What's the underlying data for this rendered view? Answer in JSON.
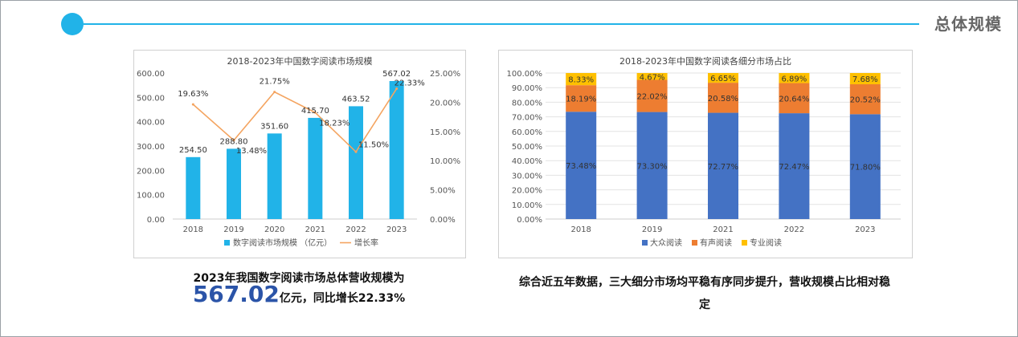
{
  "header": {
    "title": "总体规模",
    "accent": "#21b3e8"
  },
  "chart_data": [
    {
      "type": "bar",
      "title": "2018-2023年中国数字阅读市场规模",
      "categories": [
        "2018",
        "2019",
        "2020",
        "2021",
        "2022",
        "2023"
      ],
      "series": [
        {
          "name": "数字阅读市场规模 （亿元）",
          "type": "bar",
          "axis": "left",
          "color": "#21b3e8",
          "values": [
            254.5,
            288.8,
            351.6,
            415.7,
            463.52,
            567.02
          ],
          "labels": [
            "254.50",
            "288.80",
            "351.60",
            "415.70",
            "463.52",
            "567.02"
          ]
        },
        {
          "name": "增长率",
          "type": "line",
          "axis": "right",
          "color": "#f4a460",
          "values": [
            19.63,
            13.48,
            21.75,
            18.23,
            11.5,
            22.33
          ],
          "labels": [
            "19.63%",
            "13.48%",
            "21.75%",
            "18.23%",
            "11.50%",
            "22.33%"
          ]
        }
      ],
      "left_ticks": [
        "0.00",
        "100.00",
        "200.00",
        "300.00",
        "400.00",
        "500.00",
        "600.00"
      ],
      "right_ticks": [
        "0.00%",
        "5.00%",
        "10.00%",
        "15.00%",
        "20.00%",
        "25.00%"
      ],
      "ylim": [
        0,
        600
      ],
      "y2lim": [
        0,
        25
      ],
      "grid": false,
      "legend": "bottom"
    },
    {
      "type": "bar",
      "stacked": true,
      "title": "2018-2023年中国数字阅读各细分市场占比",
      "categories": [
        "2018",
        "2019",
        "2021",
        "2022",
        "2023"
      ],
      "series": [
        {
          "name": "大众阅读",
          "color": "#4472c4",
          "values": [
            73.48,
            73.3,
            72.77,
            72.47,
            71.8
          ],
          "labels": [
            "73.48%",
            "73.30%",
            "72.77%",
            "72.47%",
            "71.80%"
          ]
        },
        {
          "name": "有声阅读",
          "color": "#ed7d31",
          "values": [
            18.19,
            22.02,
            20.58,
            20.64,
            20.52
          ],
          "labels": [
            "18.19%",
            "22.02%",
            "20.58%",
            "20.64%",
            "20.52%"
          ]
        },
        {
          "name": "专业阅读",
          "color": "#ffc000",
          "values": [
            8.33,
            4.67,
            6.65,
            6.89,
            7.68
          ],
          "labels": [
            "8.33%",
            "4.67%",
            "6.65%",
            "6.89%",
            "7.68%"
          ]
        }
      ],
      "y_ticks": [
        "0.00%",
        "10.00%",
        "20.00%",
        "30.00%",
        "40.00%",
        "50.00%",
        "60.00%",
        "70.00%",
        "80.00%",
        "90.00%",
        "100.00%"
      ],
      "ylim": [
        0,
        100
      ],
      "grid": true,
      "legend": "bottom"
    }
  ],
  "captions": {
    "left_line1": "2023年我国数字阅读市场总体营收规模为",
    "left_big": "567.02",
    "left_line2": "亿元，同比增长22.33%",
    "right": "综合近五年数据，三大细分市场均平稳有序同步提升，营收规模占比相对稳定"
  }
}
